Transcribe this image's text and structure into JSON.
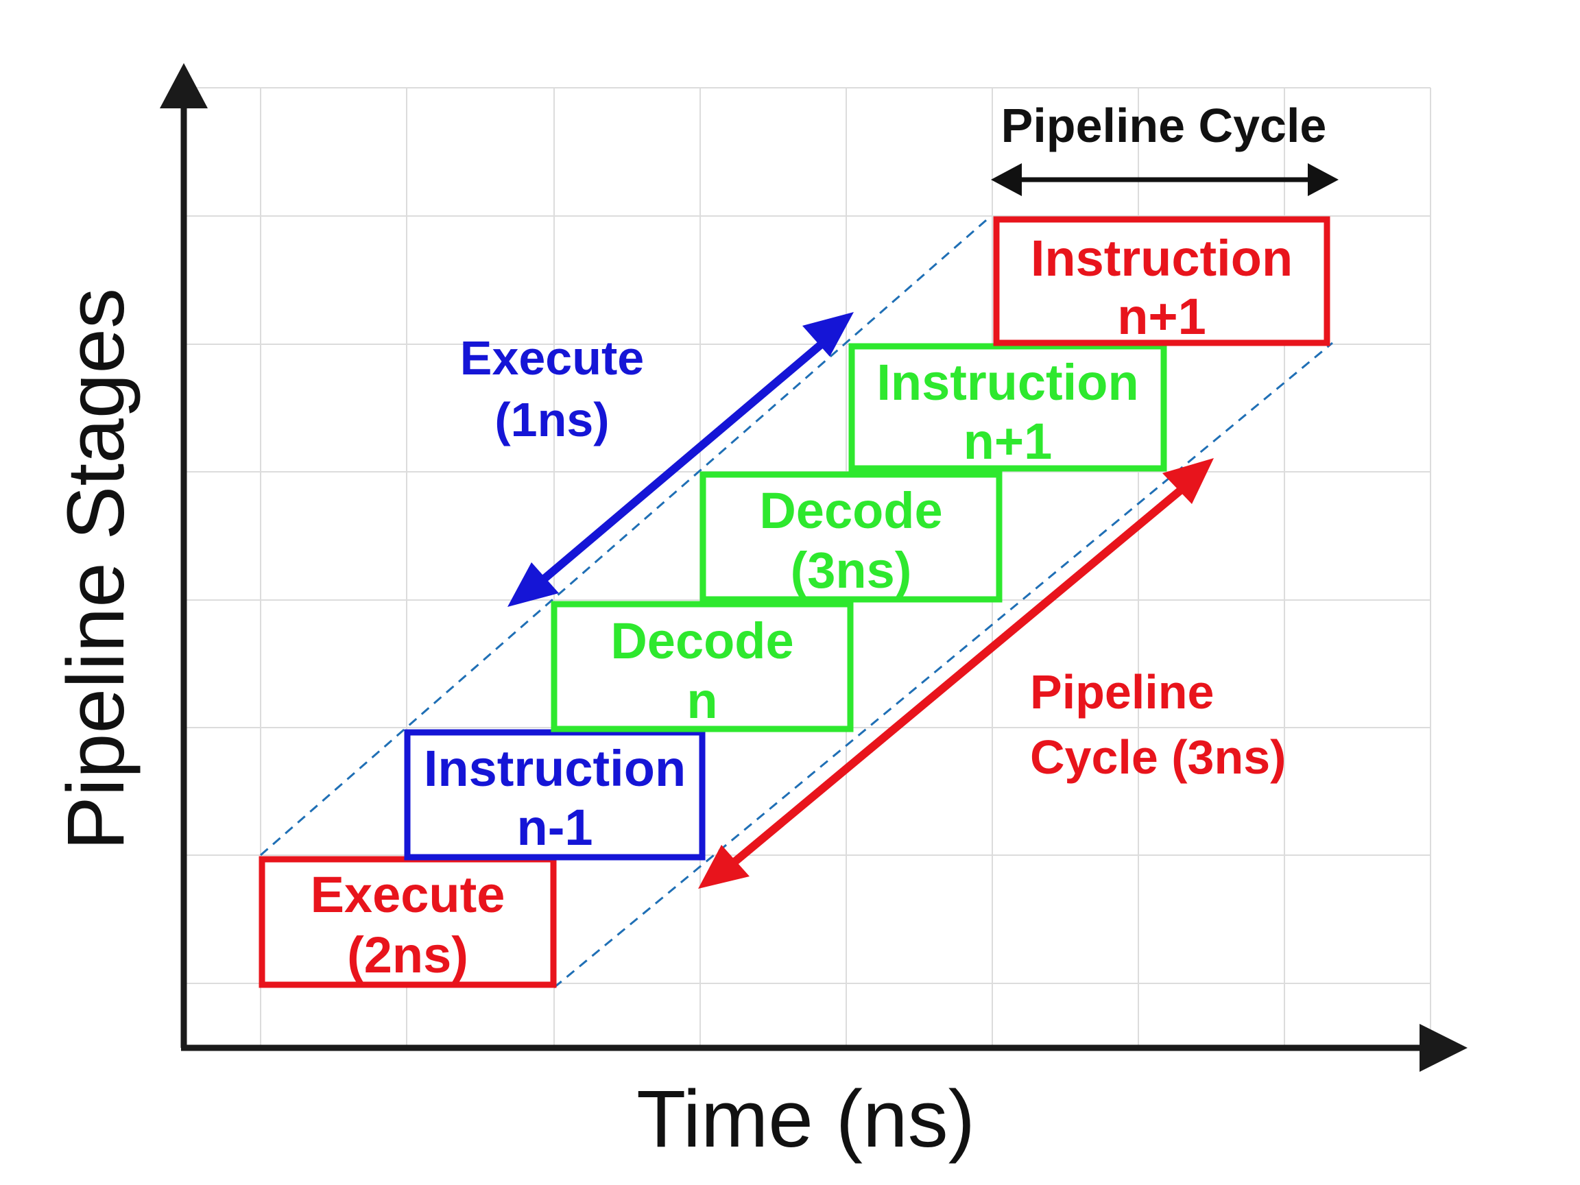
{
  "axes": {
    "x_title": "Time (ns)",
    "y_title": "Pipeline Stages"
  },
  "colors": {
    "red": "#e8141c",
    "green": "#2ee82e",
    "blue": "#1515d6",
    "axis": "#1a1a1a",
    "grid": "#dcdcdc",
    "guide": "#1f6fb5"
  },
  "boxes": [
    {
      "id": "execute-2ns",
      "color": "red",
      "lines": [
        "Execute",
        "(2ns)"
      ]
    },
    {
      "id": "instruction-n-minus-1",
      "color": "blue",
      "lines": [
        "Instruction",
        "n-1"
      ]
    },
    {
      "id": "decode-n",
      "color": "green",
      "lines": [
        "Decode",
        "n"
      ]
    },
    {
      "id": "decode-3ns",
      "color": "green",
      "lines": [
        "Decode",
        "(3ns)"
      ]
    },
    {
      "id": "instruction-n-plus-1-green",
      "color": "green",
      "lines": [
        "Instruction",
        "n+1"
      ]
    },
    {
      "id": "instruction-n-plus-1-red",
      "color": "red",
      "lines": [
        "Instruction",
        "n+1"
      ]
    }
  ],
  "labels": {
    "execute_1ns": [
      "Execute",
      "(1ns)"
    ],
    "pipeline_cycle_3ns": [
      "Pipeline",
      "Cycle (3ns)"
    ],
    "pipeline_cycle_top": "Pipeline Cycle"
  }
}
